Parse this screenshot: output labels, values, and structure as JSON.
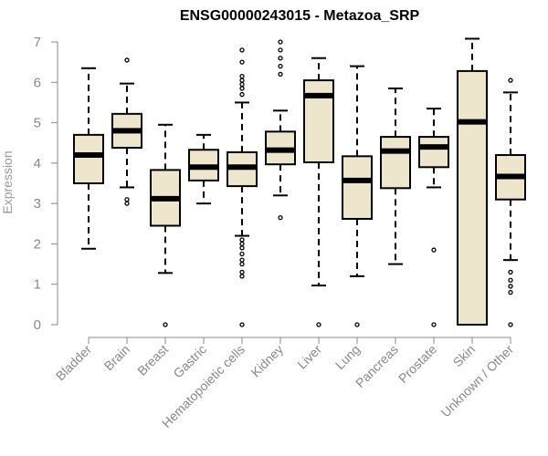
{
  "colors": {
    "box_fill": "#ede6cc",
    "box_stroke": "#000000",
    "axis": "#888888",
    "tick_text": "#888888",
    "label_text": "#999999",
    "title_text": "#000000"
  },
  "chart_data": {
    "type": "boxplot",
    "title": "ENSG00000243015 - Metazoa_SRP",
    "xlabel": "",
    "ylabel": "Expression",
    "ylim": [
      0,
      7
    ],
    "yticks": [
      0,
      1,
      2,
      3,
      4,
      5,
      6,
      7
    ],
    "grid": false,
    "categories": [
      "Bladder",
      "Brain",
      "Breast",
      "Gastric",
      "Hematopoietic cells",
      "Kidney",
      "Liver",
      "Lung",
      "Pancreas",
      "Prostate",
      "Skin",
      "Unknown / Other"
    ],
    "boxes": [
      {
        "name": "Bladder",
        "whisker_low": 1.88,
        "q1": 3.5,
        "median": 4.2,
        "q3": 4.7,
        "whisker_high": 6.35,
        "outliers": []
      },
      {
        "name": "Brain",
        "whisker_low": 3.4,
        "q1": 4.38,
        "median": 4.8,
        "q3": 5.22,
        "whisker_high": 5.97,
        "outliers": [
          3.0,
          3.1,
          6.55
        ]
      },
      {
        "name": "Breast",
        "whisker_low": 1.28,
        "q1": 2.45,
        "median": 3.12,
        "q3": 3.83,
        "whisker_high": 4.95,
        "outliers": [
          0.0
        ]
      },
      {
        "name": "Gastric",
        "whisker_low": 3.0,
        "q1": 3.57,
        "median": 3.9,
        "q3": 4.33,
        "whisker_high": 4.7,
        "outliers": []
      },
      {
        "name": "Hematopoietic cells",
        "whisker_low": 2.2,
        "q1": 3.43,
        "median": 3.9,
        "q3": 4.27,
        "whisker_high": 5.5,
        "outliers": [
          0.0,
          1.2,
          1.3,
          1.5,
          1.6,
          1.75,
          1.9,
          2.0,
          2.1,
          5.7,
          5.85,
          5.95,
          6.05,
          6.15,
          6.5,
          6.8
        ]
      },
      {
        "name": "Kidney",
        "whisker_low": 3.2,
        "q1": 3.97,
        "median": 4.32,
        "q3": 4.78,
        "whisker_high": 5.3,
        "outliers": [
          2.65,
          6.2,
          6.4,
          6.6,
          6.8,
          7.0
        ]
      },
      {
        "name": "Liver",
        "whisker_low": 0.97,
        "q1": 4.02,
        "median": 5.67,
        "q3": 6.05,
        "whisker_high": 6.6,
        "outliers": [
          0.0
        ]
      },
      {
        "name": "Lung",
        "whisker_low": 1.2,
        "q1": 2.62,
        "median": 3.57,
        "q3": 4.17,
        "whisker_high": 6.4,
        "outliers": [
          0.0
        ]
      },
      {
        "name": "Pancreas",
        "whisker_low": 1.5,
        "q1": 3.38,
        "median": 4.3,
        "q3": 4.65,
        "whisker_high": 5.85,
        "outliers": []
      },
      {
        "name": "Prostate",
        "whisker_low": 3.4,
        "q1": 3.9,
        "median": 4.4,
        "q3": 4.65,
        "whisker_high": 5.35,
        "outliers": [
          0.0,
          1.85
        ]
      },
      {
        "name": "Skin",
        "whisker_low": 0.0,
        "q1": 0.0,
        "median": 5.02,
        "q3": 6.28,
        "whisker_high": 7.08,
        "outliers": []
      },
      {
        "name": "Unknown / Other",
        "whisker_low": 1.6,
        "q1": 3.1,
        "median": 3.67,
        "q3": 4.2,
        "whisker_high": 5.75,
        "outliers": [
          0.0,
          0.8,
          0.95,
          1.1,
          1.3,
          6.05
        ]
      }
    ]
  }
}
